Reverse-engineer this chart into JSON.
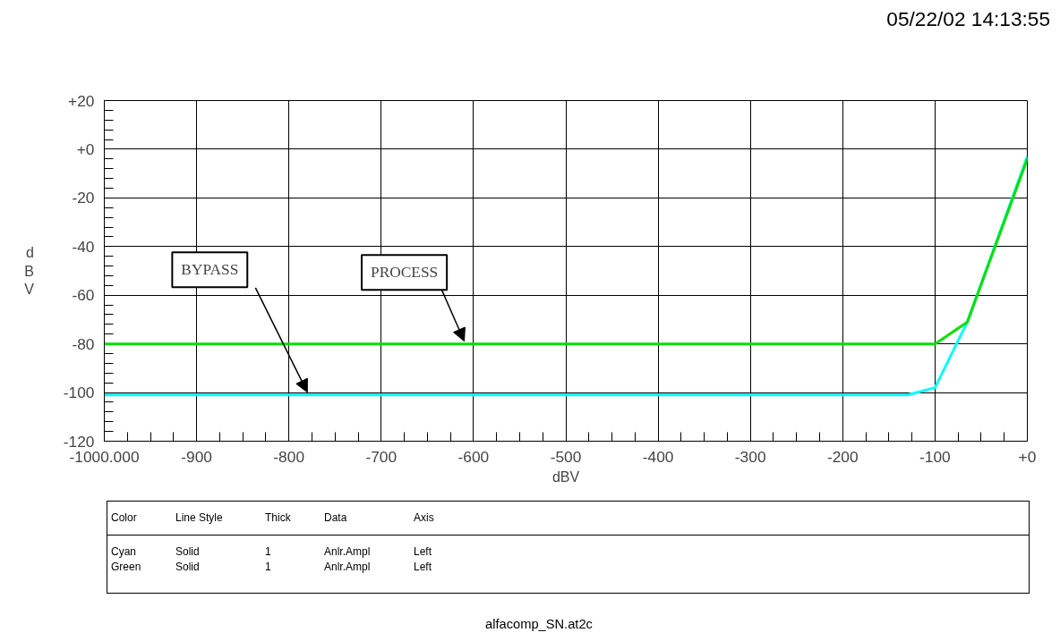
{
  "chart_data": {
    "type": "line",
    "xlabel": "dBV",
    "ylabel": "dBV",
    "xlim": [
      -1000,
      0
    ],
    "ylim": [
      -120,
      20
    ],
    "xticks": [
      {
        "value": -1000,
        "label": "-1000.000"
      },
      -900,
      -800,
      -700,
      -600,
      -500,
      -400,
      -300,
      -200,
      -100,
      {
        "value": 0,
        "label": "+0"
      }
    ],
    "yticks": [
      -120,
      -100,
      -80,
      -60,
      -40,
      -20,
      {
        "value": 0,
        "label": "+0"
      },
      {
        "value": 20,
        "label": "+20"
      }
    ],
    "grid": true,
    "line_style": "solid",
    "marker": "none",
    "series": [
      {
        "color": "#00ffff",
        "x": [
          -1000,
          -130,
          -100,
          -65,
          0
        ],
        "values": [
          -101,
          -101,
          -98,
          -71,
          -3
        ]
      },
      {
        "color": "#00e000",
        "x": [
          -1000,
          -100,
          -65,
          0
        ],
        "values": [
          -80,
          -80,
          -71,
          -4
        ]
      }
    ],
    "annotations": [
      {
        "text": "BYPASS",
        "x": -780,
        "y": -101
      },
      {
        "text": "PROCESS",
        "x": -610,
        "y": -80
      },
      "05/22/02 14:13:55",
      "Color\tLine Style\tThick\tData\tAxis",
      "Cyan\tSolid\t1\tAnlr.Ampl\tLeft",
      "Green\tSolid\t1\tAnlr.Ampl\tLeft",
      "alfacomp_SN.at2c"
    ]
  }
}
